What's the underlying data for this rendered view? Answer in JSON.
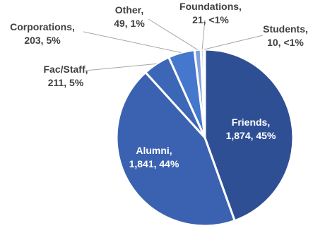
{
  "chart_data": {
    "type": "pie",
    "title": "",
    "start_angle_deg": 0,
    "direction": "clockwise",
    "slices": [
      {
        "label": "Friends",
        "value": 1874,
        "value_text": "1,874",
        "percent_text": "45%",
        "color": "#2f4f95"
      },
      {
        "label": "Alumni",
        "value": 1841,
        "value_text": "1,841",
        "percent_text": "44%",
        "color": "#3a62b0"
      },
      {
        "label": "Fac/Staff",
        "value": 211,
        "value_text": "211",
        "percent_text": "5%",
        "color": "#3c66b6"
      },
      {
        "label": "Corporations",
        "value": 203,
        "value_text": "203",
        "percent_text": "5%",
        "color": "#4577cc"
      },
      {
        "label": "Other",
        "value": 49,
        "value_text": "49",
        "percent_text": "1%",
        "color": "#7f9fe0"
      },
      {
        "label": "Foundations",
        "value": 21,
        "value_text": "21",
        "percent_text": "<1%",
        "color": "#9fb5e6"
      },
      {
        "label": "Students",
        "value": 10,
        "value_text": "10",
        "percent_text": "<1%",
        "color": "#c3d1ef"
      }
    ]
  }
}
